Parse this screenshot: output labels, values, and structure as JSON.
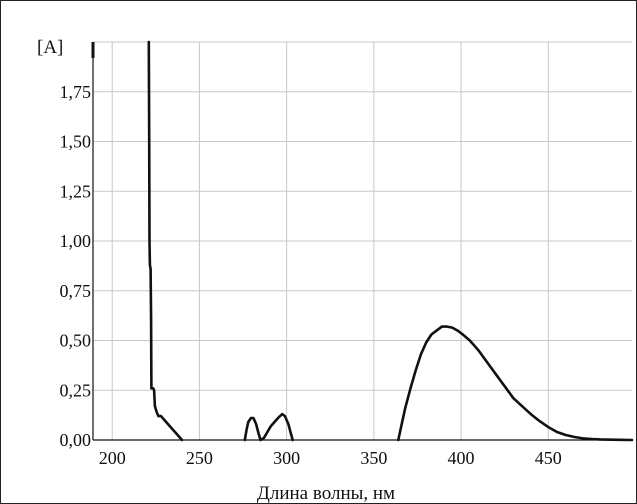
{
  "chart_data": {
    "type": "line",
    "title": "",
    "xlabel": "Длина волны, нм",
    "ylabel": "[A]",
    "xlim": [
      189,
      498
    ],
    "ylim": [
      0,
      2.0
    ],
    "x_ticks": [
      200,
      250,
      300,
      350,
      400,
      450
    ],
    "x_tick_labels": [
      "200",
      "250",
      "300",
      "350",
      "400",
      "450"
    ],
    "y_ticks": [
      0,
      0.25,
      0.5,
      0.75,
      1.0,
      1.25,
      1.5,
      1.75
    ],
    "y_tick_labels": [
      "0,00",
      "0,25",
      "0,50",
      "0,75",
      "1,00",
      "1,25",
      "1,50",
      "1,75"
    ],
    "grid": true,
    "line_color": "#111111",
    "grid_color": "#c8c8c8",
    "series": [
      {
        "segments": [
          [
            [
              221.0,
              2.0
            ],
            [
              221.2,
              1.5
            ],
            [
              221.4,
              1.0
            ],
            [
              221.6,
              0.88
            ],
            [
              222.0,
              0.86
            ],
            [
              222.3,
              0.6
            ],
            [
              222.5,
              0.26
            ],
            [
              223.5,
              0.26
            ],
            [
              224.0,
              0.25
            ],
            [
              224.5,
              0.17
            ],
            [
              225.5,
              0.14
            ],
            [
              226.5,
              0.12
            ],
            [
              228.0,
              0.12
            ],
            [
              230.0,
              0.1
            ],
            [
              232.0,
              0.08
            ],
            [
              234.0,
              0.06
            ],
            [
              236.0,
              0.04
            ],
            [
              238.0,
              0.02
            ],
            [
              240.0,
              0.0
            ]
          ],
          [
            [
              276.0,
              0.0
            ],
            [
              277.0,
              0.05
            ],
            [
              278.0,
              0.09
            ],
            [
              279.5,
              0.11
            ],
            [
              281.0,
              0.11
            ],
            [
              282.5,
              0.08
            ],
            [
              284.0,
              0.03
            ],
            [
              285.0,
              0.0
            ],
            [
              287.0,
              0.01
            ],
            [
              289.0,
              0.04
            ],
            [
              291.0,
              0.07
            ],
            [
              293.0,
              0.09
            ],
            [
              295.0,
              0.11
            ],
            [
              297.5,
              0.13
            ],
            [
              299.0,
              0.12
            ],
            [
              301.0,
              0.08
            ],
            [
              302.5,
              0.03
            ],
            [
              303.5,
              0.0
            ]
          ],
          [
            [
              364.0,
              0.0
            ],
            [
              366.0,
              0.08
            ],
            [
              368.0,
              0.16
            ],
            [
              371.0,
              0.26
            ],
            [
              374.0,
              0.35
            ],
            [
              377.0,
              0.43
            ],
            [
              380.0,
              0.49
            ],
            [
              383.0,
              0.53
            ],
            [
              386.0,
              0.55
            ],
            [
              389.0,
              0.57
            ],
            [
              392.0,
              0.57
            ],
            [
              395.0,
              0.565
            ],
            [
              398.0,
              0.55
            ],
            [
              401.0,
              0.53
            ],
            [
              405.0,
              0.5
            ],
            [
              410.0,
              0.45
            ],
            [
              415.0,
              0.39
            ],
            [
              420.0,
              0.33
            ],
            [
              425.0,
              0.27
            ],
            [
              430.0,
              0.21
            ],
            [
              435.0,
              0.17
            ],
            [
              440.0,
              0.13
            ],
            [
              445.0,
              0.095
            ],
            [
              450.0,
              0.065
            ],
            [
              455.0,
              0.04
            ],
            [
              460.0,
              0.025
            ],
            [
              465.0,
              0.015
            ],
            [
              470.0,
              0.008
            ],
            [
              475.0,
              0.005
            ],
            [
              480.0,
              0.003
            ],
            [
              490.0,
              0.001
            ],
            [
              498.0,
              0.0
            ]
          ]
        ]
      }
    ]
  }
}
